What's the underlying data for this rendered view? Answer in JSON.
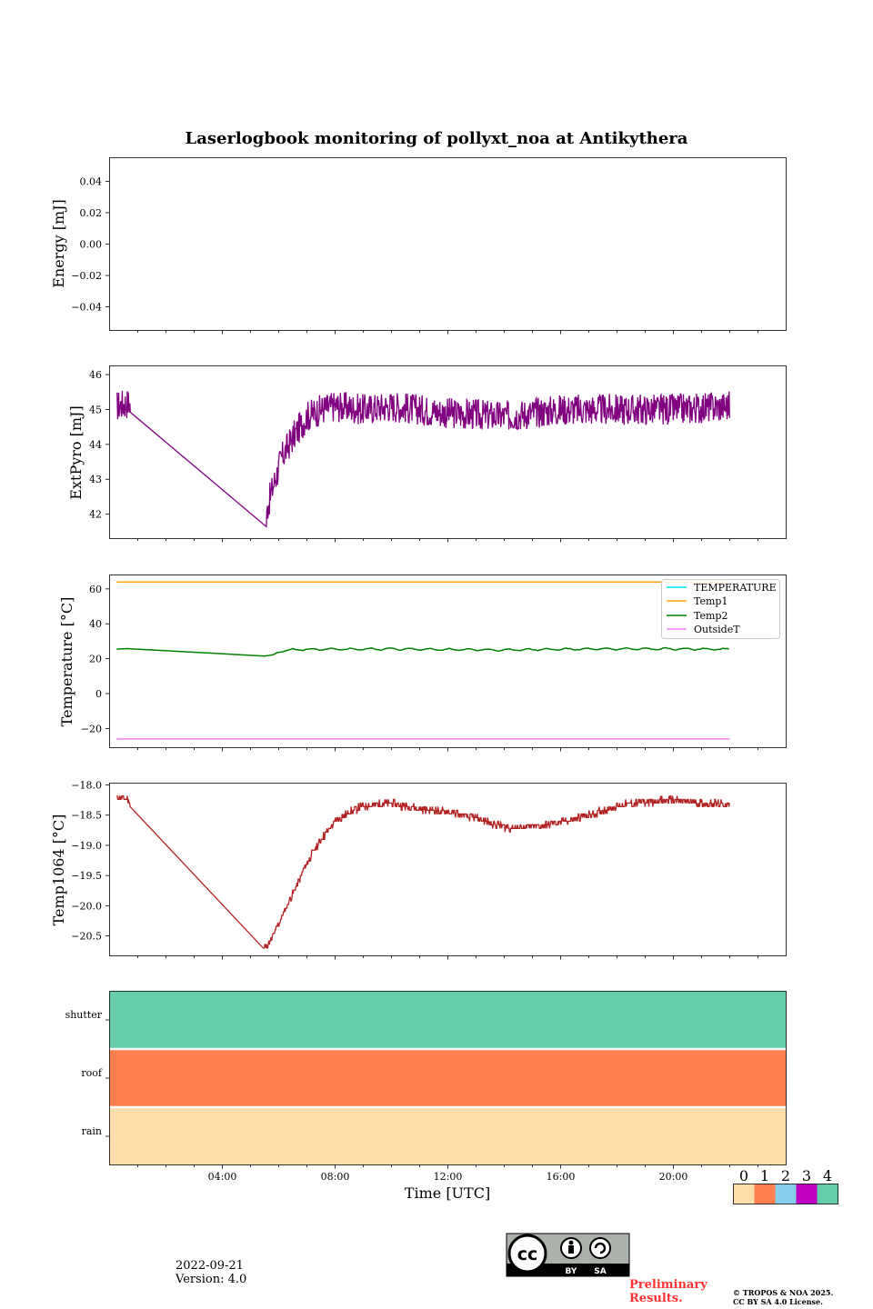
{
  "title": "Laserlogbook monitoring of pollyxt_noa at Antikythera",
  "footer": {
    "date": "2022-09-21",
    "version": "Version: 4.0",
    "preliminary": "Preliminary",
    "results": "Results.",
    "copyright_line1": "© TROPOS & NOA 2025.",
    "copyright_line2": "CC BY SA 4.0 License.",
    "cc_by": "BY",
    "cc_sa": "SA"
  },
  "colors": {
    "extpyro": "#800080",
    "temperature": "#00e5ee",
    "temp1": "#ffa500",
    "temp2": "#008000",
    "outsidet": "#ee82ee",
    "temp1064": "#b22222",
    "flag0": "#fddeab",
    "flag1": "#ff7f50",
    "flag2": "#87ceeb",
    "flag3": "#c000c0",
    "flag4": "#66cdaa"
  },
  "chart_data": [
    {
      "type": "line",
      "panel": "energy",
      "ylabel": "Energy [mJ]",
      "ylim": [
        -0.055,
        0.055
      ],
      "yticks": [
        0.04,
        0.02,
        0.0,
        -0.02,
        -0.04
      ],
      "ytick_labels": [
        "0.04",
        "0.02",
        "0.00",
        "−0.02",
        "−0.04"
      ],
      "series": []
    },
    {
      "type": "line",
      "panel": "extpyro",
      "ylabel": "ExtPyro [mJ]",
      "ylim": [
        41.3,
        46.25
      ],
      "yticks": [
        46,
        45,
        44,
        43,
        42
      ],
      "ytick_labels": [
        "46",
        "45",
        "44",
        "43",
        "42"
      ],
      "x_hours": [
        0.25,
        0.7,
        0.75,
        5.55,
        5.6,
        5.8,
        6.1,
        6.5,
        7.0,
        7.5,
        8.0,
        9.0,
        10.0,
        12.0,
        14.0,
        16.0,
        18.0,
        20.0,
        22.0,
        22.0
      ],
      "values": [
        45.1,
        45.2,
        45.0,
        41.5,
        42.2,
        42.8,
        43.6,
        44.2,
        44.8,
        45.0,
        45.1,
        45.0,
        45.1,
        44.9,
        44.8,
        45.0,
        45.0,
        45.0,
        45.1,
        45.0
      ],
      "noise": 0.45
    },
    {
      "type": "line",
      "panel": "temperature",
      "ylabel": "Temperature [°C]",
      "ylim": [
        -31,
        68
      ],
      "yticks": [
        60,
        40,
        20,
        0,
        -20
      ],
      "ytick_labels": [
        "60",
        "40",
        "20",
        "0",
        "−20"
      ],
      "legend_position": "upper right",
      "series": [
        {
          "name": "TEMPERATURE",
          "x_hours": [],
          "values": []
        },
        {
          "name": "Temp1",
          "x_hours": [
            0.25,
            22.0
          ],
          "values": [
            64,
            64
          ]
        },
        {
          "name": "Temp2",
          "x_hours": [
            0.25,
            0.6,
            5.5,
            5.8,
            6.0,
            6.5,
            8.0,
            10.0,
            12.0,
            14.0,
            16.0,
            18.0,
            20.0,
            22.0
          ],
          "values": [
            25.5,
            25.8,
            21.5,
            22.2,
            24.0,
            25.2,
            25.4,
            25.6,
            25.3,
            25.0,
            25.4,
            25.6,
            25.6,
            25.4
          ]
        },
        {
          "name": "OutsideT",
          "x_hours": [
            0.25,
            22.0
          ],
          "values": [
            -26,
            -26
          ]
        }
      ]
    },
    {
      "type": "line",
      "panel": "temp1064",
      "ylabel": "Temp1064 [°C]",
      "ylim": [
        -20.83,
        -17.97
      ],
      "yticks": [
        -18.0,
        -18.5,
        -19.0,
        -19.5,
        -20.0,
        -20.5
      ],
      "ytick_labels": [
        "−18.0",
        "−18.5",
        "−19.0",
        "−19.5",
        "−20.0",
        "−20.5"
      ],
      "x_hours": [
        0.25,
        0.7,
        0.75,
        5.45,
        5.7,
        6.0,
        6.5,
        7.0,
        7.5,
        8.0,
        8.5,
        9.0,
        10.0,
        11.0,
        12.0,
        13.0,
        14.0,
        15.0,
        16.0,
        17.0,
        18.0,
        19.0,
        20.0,
        21.0,
        22.0
      ],
      "values": [
        -18.2,
        -18.25,
        -18.4,
        -20.7,
        -20.6,
        -20.3,
        -19.8,
        -19.3,
        -18.9,
        -18.6,
        -18.45,
        -18.35,
        -18.3,
        -18.4,
        -18.45,
        -18.55,
        -18.7,
        -18.7,
        -18.62,
        -18.5,
        -18.35,
        -18.28,
        -18.25,
        -18.3,
        -18.33
      ],
      "noise": 0.06
    },
    {
      "type": "heatmap",
      "panel": "flags",
      "rows": [
        "shutter",
        "roof",
        "rain"
      ],
      "row_values": [
        4,
        1,
        0
      ],
      "x_range_hours": [
        0,
        24
      ],
      "xlabel": "Time [UTC]",
      "xtick_labels": [
        "04:00",
        "08:00",
        "12:00",
        "16:00",
        "20:00"
      ],
      "xtick_hours": [
        4,
        8,
        12,
        16,
        20
      ],
      "colorbar_labels": [
        "0",
        "1",
        "2",
        "3",
        "4"
      ]
    }
  ]
}
